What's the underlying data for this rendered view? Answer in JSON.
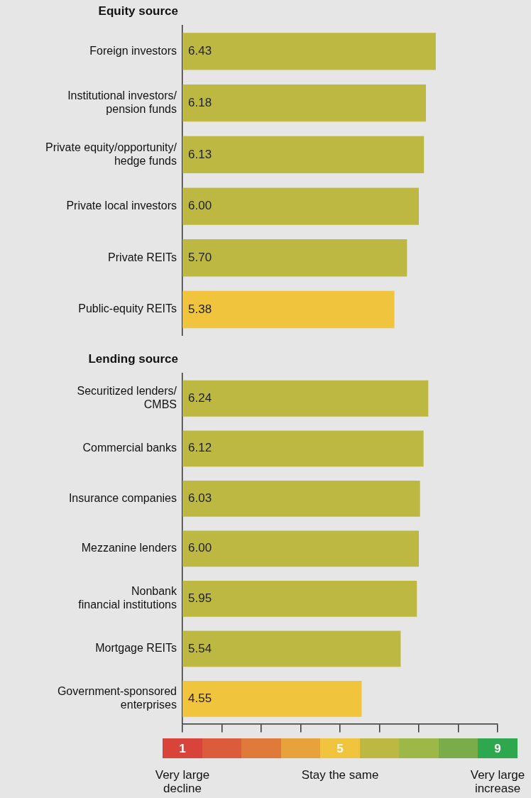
{
  "chart_data": [
    {
      "type": "bar",
      "orientation": "horizontal",
      "title": "Equity source",
      "categories": [
        "Foreign investors",
        "Institutional investors/\npension funds",
        "Private equity/opportunity/\nhedge funds",
        "Private local investors",
        "Private REITs",
        "Public-equity REITs"
      ],
      "values": [
        6.43,
        6.18,
        6.13,
        6.0,
        5.7,
        5.38
      ],
      "base": [
        1,
        1,
        1,
        1,
        1,
        1
      ],
      "value_labels": [
        "6.43",
        "6.18",
        "6.13",
        "6.00",
        "5.70",
        "5.38"
      ],
      "colors": [
        "#bdb842",
        "#bdb842",
        "#bdb842",
        "#bdb842",
        "#bdb842",
        "#f0c43c"
      ],
      "xlim": [
        1,
        9
      ],
      "tick_labels": "y",
      "grid": false,
      "legend": false
    },
    {
      "type": "bar",
      "orientation": "horizontal",
      "title": "Lending source",
      "categories": [
        "Securitized lenders/\nCMBS",
        "Commercial banks",
        "Insurance companies",
        "Mezzanine lenders",
        "Nonbank\nfinancial institutions",
        "Mortgage REITs",
        "Government-sponsored\nenterprises"
      ],
      "values": [
        6.24,
        6.12,
        6.03,
        6.0,
        5.95,
        5.54,
        4.55
      ],
      "base": [
        1,
        1,
        1,
        1,
        1,
        1,
        1
      ],
      "value_labels": [
        "6.24",
        "6.12",
        "6.03",
        "6.00",
        "5.95",
        "5.54",
        "4.55"
      ],
      "colors": [
        "#bdb842",
        "#bdb842",
        "#bdb842",
        "#bdb842",
        "#bdb842",
        "#bdb842",
        "#f0c43c"
      ],
      "xlim": [
        1,
        9
      ],
      "xticks": [
        {
          "value": 1,
          "label": "1"
        },
        {
          "value": 2,
          "label": null
        },
        {
          "value": 3,
          "label": null
        },
        {
          "value": 4,
          "label": null
        },
        {
          "value": 5,
          "label": "5"
        },
        {
          "value": 6,
          "label": null
        },
        {
          "value": 7,
          "label": null
        },
        {
          "value": 8,
          "label": null
        },
        {
          "value": 9,
          "label": "9"
        }
      ],
      "annotations": [
        "Very large\ndecline",
        "Stay the same",
        "Very large\nincrease"
      ],
      "grid": false,
      "legend": false
    }
  ]
}
